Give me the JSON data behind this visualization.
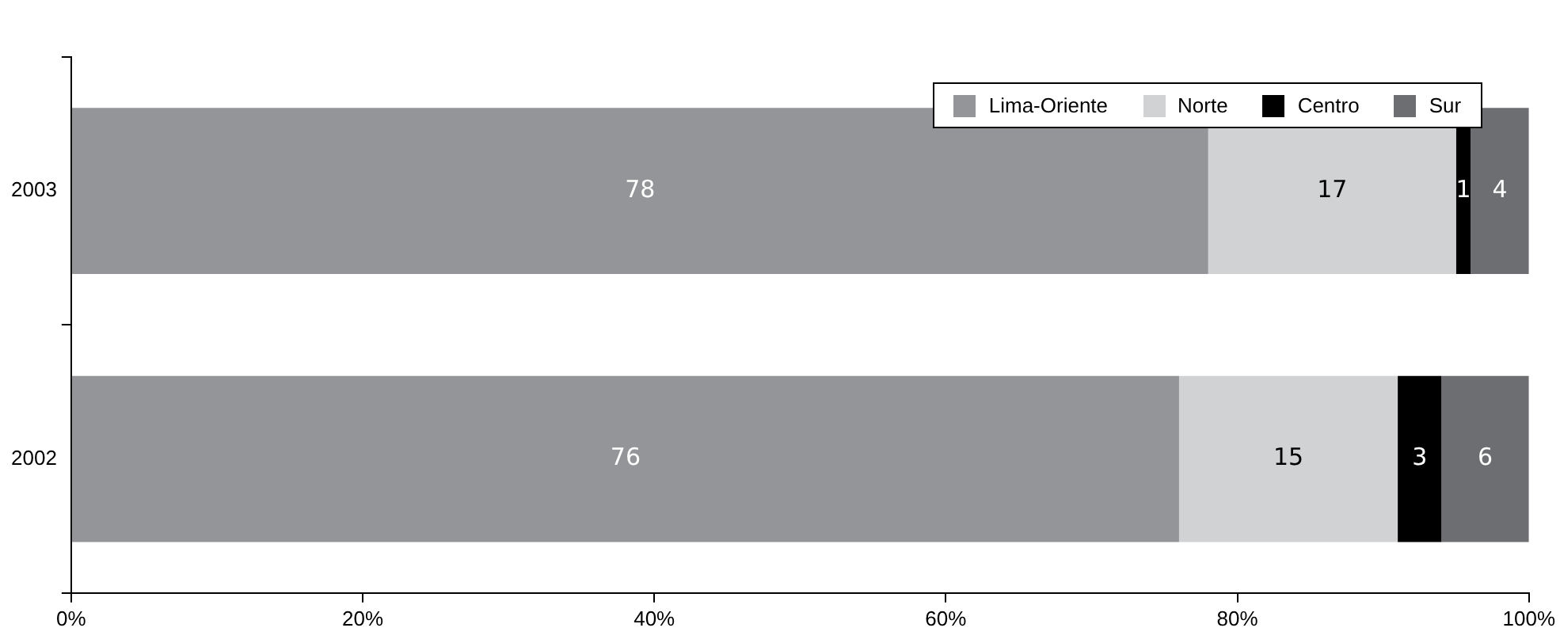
{
  "chart_data": {
    "type": "bar",
    "orientation": "horizontal",
    "stacked": true,
    "categories": [
      "2003",
      "2002"
    ],
    "series": [
      {
        "name": "Lima-Oriente",
        "color": "#939598",
        "values": [
          78,
          76
        ]
      },
      {
        "name": "Norte",
        "color": "#d1d2d4",
        "values": [
          17,
          15
        ]
      },
      {
        "name": "Centro",
        "color": "#000000",
        "values": [
          1,
          3
        ]
      },
      {
        "name": "Sur",
        "color": "#6d6e71",
        "values": [
          4,
          6
        ]
      }
    ],
    "xlim": [
      0,
      100
    ],
    "xticks": [
      {
        "value": 0,
        "label": "0%"
      },
      {
        "value": 20,
        "label": "20%"
      },
      {
        "value": 40,
        "label": "40%"
      },
      {
        "value": 60,
        "label": "60%"
      },
      {
        "value": 80,
        "label": "80%"
      },
      {
        "value": 100,
        "label": "100%"
      }
    ],
    "data_labels": true,
    "legend": "top right",
    "grid": false
  }
}
